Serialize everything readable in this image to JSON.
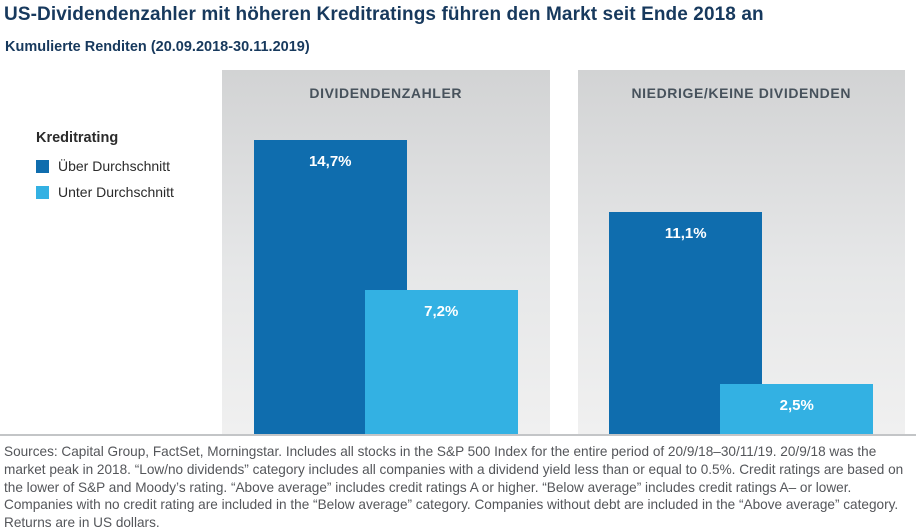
{
  "title": "US-Dividendenzahler mit höheren Kreditratings führen den Markt seit Ende 2018 an",
  "subtitle": "Kumulierte Renditen (20.09.2018-30.11.2019)",
  "legend": {
    "title": "Kreditrating",
    "items": [
      {
        "label": "Über Durchschnitt",
        "color": "#0f6dae"
      },
      {
        "label": "Unter Durchschnitt",
        "color": "#33b1e3"
      }
    ]
  },
  "chart_data": {
    "type": "bar",
    "ylim": [
      0,
      15
    ],
    "grid": false,
    "legend_position": "left",
    "series_names": [
      "Über Durchschnitt",
      "Unter Durchschnitt"
    ],
    "series_colors": [
      "#0f6dae",
      "#33b1e3"
    ],
    "groups": [
      {
        "label": "DIVIDENDENZAHLER",
        "bars": [
          {
            "name": "Über Durchschnitt",
            "value": 14.7,
            "display": "14,7%"
          },
          {
            "name": "Unter Durchschnitt",
            "value": 7.2,
            "display": "7,2%"
          }
        ]
      },
      {
        "label": "NIEDRIGE/KEINE DIVIDENDEN",
        "bars": [
          {
            "name": "Über Durchschnitt",
            "value": 11.1,
            "display": "11,1%"
          },
          {
            "name": "Unter Durchschnitt",
            "value": 2.5,
            "display": "2,5%"
          }
        ]
      }
    ]
  },
  "footnote": "Sources: Capital Group, FactSet, Morningstar. Includes all stocks in the S&P 500 Index for the entire period of 20/9/18–30/11/19. 20/9/18 was the market peak in 2018. “Low/no dividends” category includes all companies with a dividend yield less than or equal to 0.5%. Credit ratings are based on the lower of S&P and Moody’s rating. “Above average” includes credit ratings A or higher. “Below average” includes credit ratings A– or lower. Companies with no credit rating are included in the “Below average” category. Companies without debt are included in the “Above average” category. Returns are in US dollars."
}
